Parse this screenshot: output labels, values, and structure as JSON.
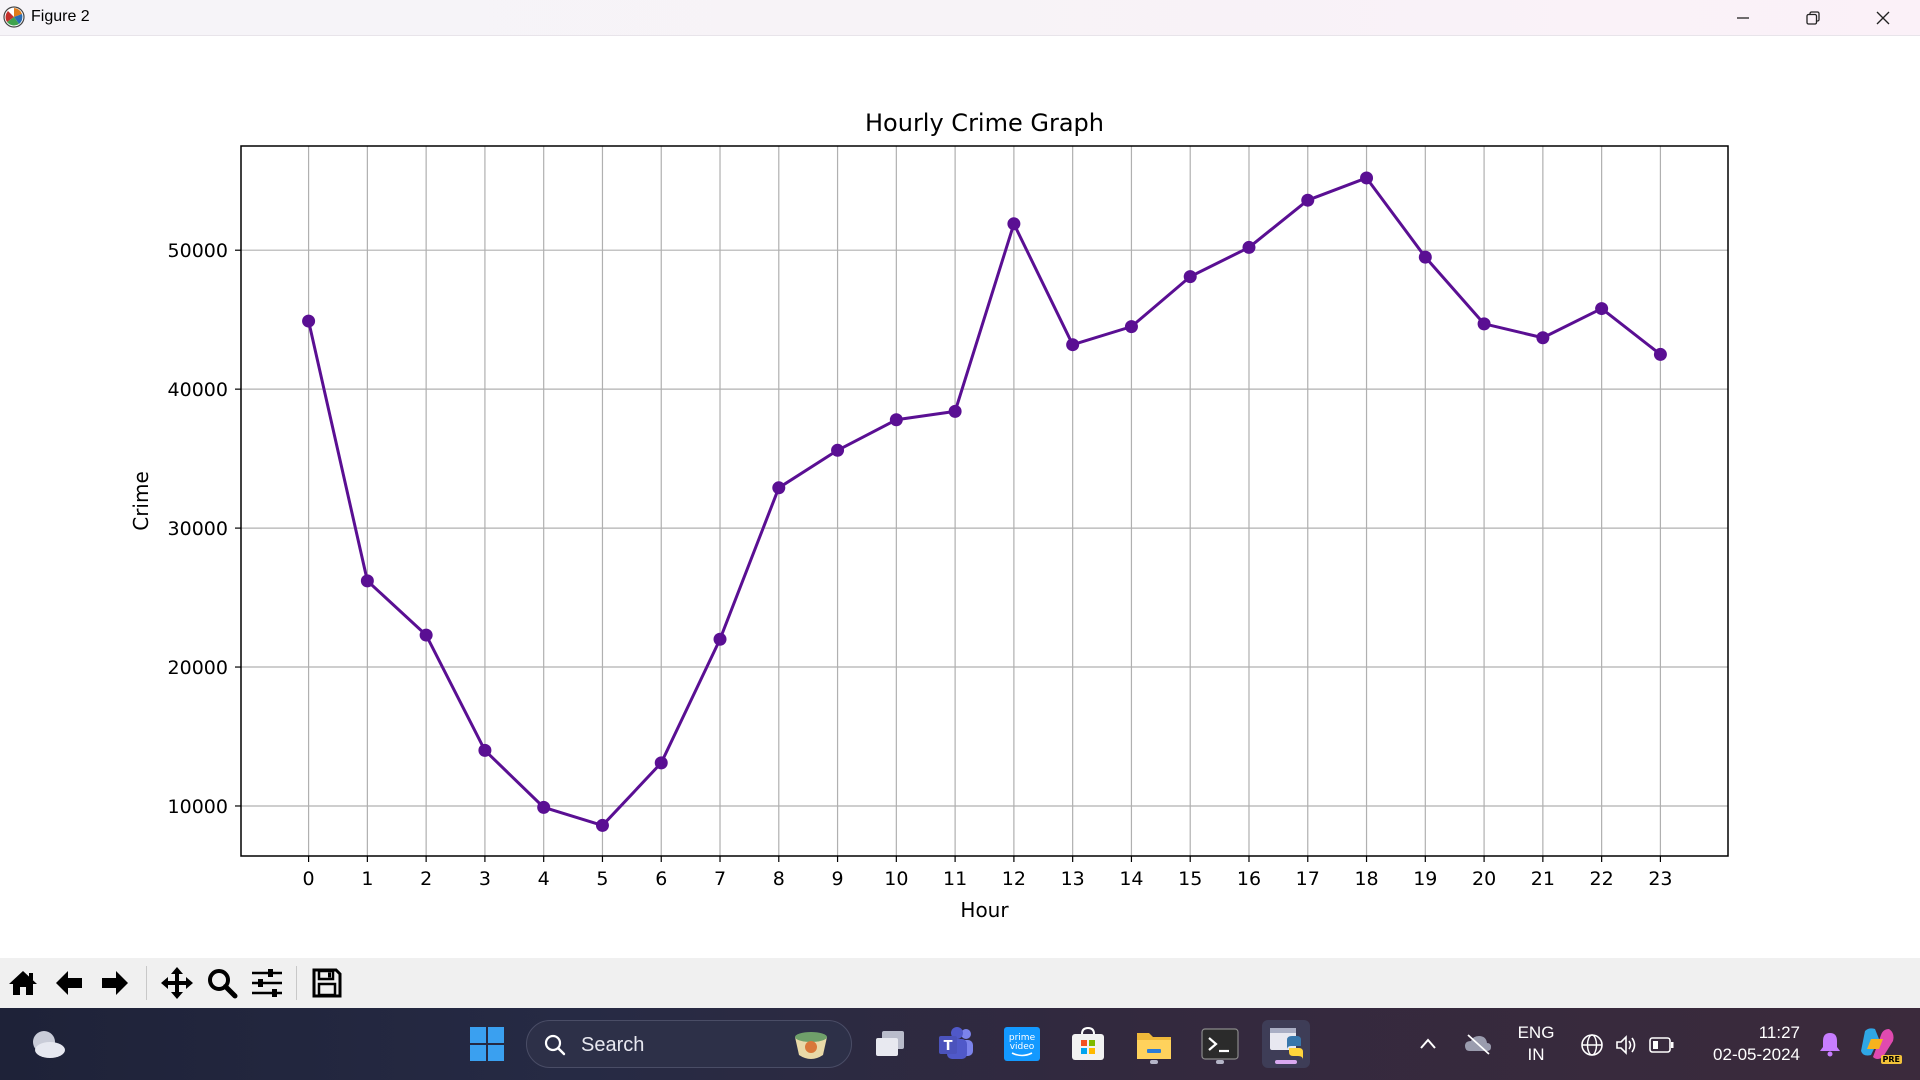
{
  "window": {
    "title": "Figure 2",
    "icons": [
      "matplotlib-logo-icon",
      "minimize-icon",
      "restore-icon",
      "close-icon"
    ]
  },
  "chart_data": {
    "type": "line",
    "title": "Hourly Crime Graph",
    "xlabel": "Hour",
    "ylabel": "Crime",
    "x": [
      0,
      1,
      2,
      3,
      4,
      5,
      6,
      7,
      8,
      9,
      10,
      11,
      12,
      13,
      14,
      15,
      16,
      17,
      18,
      19,
      20,
      21,
      22,
      23
    ],
    "y": [
      44900,
      26200,
      22300,
      14000,
      9900,
      8600,
      13100,
      22000,
      32900,
      35600,
      37800,
      38400,
      51900,
      43200,
      44500,
      48100,
      50200,
      53600,
      55200,
      49500,
      44700,
      43700,
      45800,
      42500
    ],
    "xticks": [
      "0",
      "1",
      "2",
      "3",
      "4",
      "5",
      "6",
      "7",
      "8",
      "9",
      "10",
      "11",
      "12",
      "13",
      "14",
      "15",
      "16",
      "17",
      "18",
      "19",
      "20",
      "21",
      "22",
      "23"
    ],
    "yticks": [
      10000,
      20000,
      30000,
      40000,
      50000
    ],
    "ytick_labels": [
      "10000",
      "20000",
      "30000",
      "40000",
      "50000"
    ],
    "xlim": [
      -1.15,
      24.15
    ],
    "ylim": [
      6400,
      57500
    ],
    "grid": true,
    "line_color": "#5a0f93",
    "marker": "circle"
  },
  "toolbar": {
    "icons": [
      "home-icon",
      "back-arrow-icon",
      "forward-arrow-icon",
      "pan-icon",
      "zoom-icon",
      "configure-subplots-icon",
      "save-icon"
    ]
  },
  "taskbar": {
    "search_placeholder": "Search",
    "language_top": "ENG",
    "language_bottom": "IN",
    "time": "11:27",
    "date": "02-05-2024",
    "copilot_badge": "PRE"
  }
}
